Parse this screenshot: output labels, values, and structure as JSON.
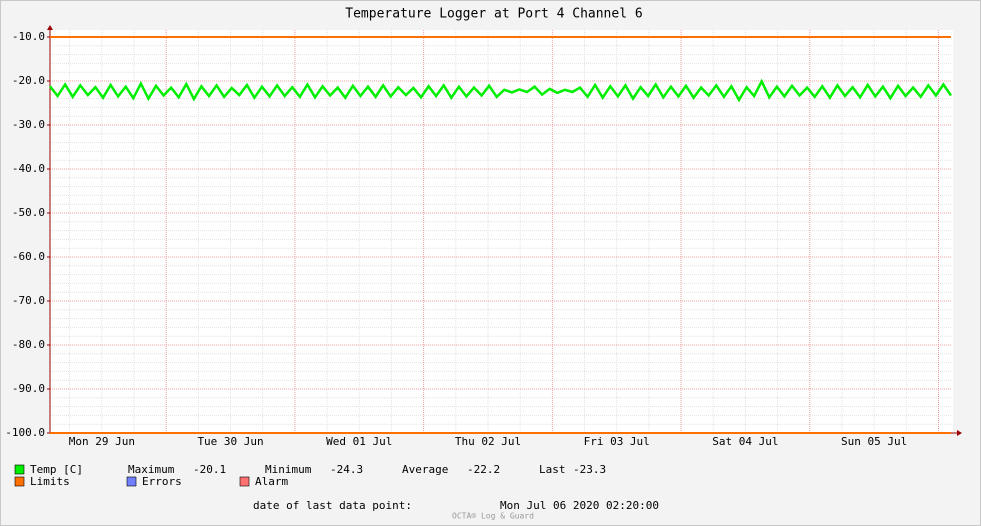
{
  "chart_data": {
    "type": "line",
    "title": "Temperature Logger at Port 4 Channel 6",
    "xlim": [
      "2020-06-29T02:20",
      "2020-07-06T02:20"
    ],
    "xticks": [
      {
        "value": "2020-06-29T12:00",
        "label": "Mon 29 Jun"
      },
      {
        "value": "2020-06-30T12:00",
        "label": "Tue 30 Jun"
      },
      {
        "value": "2020-07-01T12:00",
        "label": "Wed 01 Jul"
      },
      {
        "value": "2020-07-02T12:00",
        "label": "Thu 02 Jul"
      },
      {
        "value": "2020-07-03T12:00",
        "label": "Fri 03 Jul"
      },
      {
        "value": "2020-07-04T12:00",
        "label": "Sat 04 Jul"
      },
      {
        "value": "2020-07-05T12:00",
        "label": "Sun 05 Jul"
      }
    ],
    "xgrid": [
      "2020-06-30T00:00",
      "2020-07-01T00:00",
      "2020-07-02T00:00",
      "2020-07-03T00:00",
      "2020-07-04T00:00",
      "2020-07-05T00:00",
      "2020-07-06T00:00"
    ],
    "xminorgrid": [
      "2020-06-29T06:00",
      "2020-06-29T12:00",
      "2020-06-29T18:00",
      "2020-06-30T06:00",
      "2020-06-30T12:00",
      "2020-06-30T18:00",
      "2020-07-01T06:00",
      "2020-07-01T12:00",
      "2020-07-01T18:00",
      "2020-07-02T06:00",
      "2020-07-02T12:00",
      "2020-07-02T18:00",
      "2020-07-03T06:00",
      "2020-07-03T12:00",
      "2020-07-03T18:00",
      "2020-07-04T06:00",
      "2020-07-04T12:00",
      "2020-07-04T18:00",
      "2020-07-05T06:00",
      "2020-07-05T12:00",
      "2020-07-05T18:00"
    ],
    "ylim": [
      -100,
      -10
    ],
    "yticks": [
      {
        "value": -10,
        "label": "-10.0"
      },
      {
        "value": -20,
        "label": "-20.0"
      },
      {
        "value": -30,
        "label": "-30.0"
      },
      {
        "value": -40,
        "label": "-40.0"
      },
      {
        "value": -50,
        "label": "-50.0"
      },
      {
        "value": -60,
        "label": "-60.0"
      },
      {
        "value": -70,
        "label": "-70.0"
      },
      {
        "value": -80,
        "label": "-80.0"
      },
      {
        "value": -90,
        "label": "-90.0"
      },
      {
        "value": -100,
        "label": "-100.0"
      }
    ],
    "yminorgrid": [
      -12,
      -14,
      -16,
      -18,
      -22,
      -24,
      -26,
      -28,
      -32,
      -34,
      -36,
      -38,
      -42,
      -44,
      -46,
      -48,
      -52,
      -54,
      -56,
      -58,
      -62,
      -64,
      -66,
      -68,
      -72,
      -74,
      -76,
      -78,
      -82,
      -84,
      -86,
      -88,
      -92,
      -94,
      -96,
      -98
    ],
    "grid": true,
    "series": [
      {
        "name": "Temp [C]",
        "color": "#00ee00",
        "values": [
          -21.2,
          -23.4,
          -20.8,
          -23.6,
          -21.0,
          -23.2,
          -21.4,
          -23.8,
          -20.9,
          -23.5,
          -21.3,
          -23.9,
          -20.6,
          -24.0,
          -21.1,
          -23.3,
          -21.5,
          -23.7,
          -20.7,
          -24.1,
          -21.2,
          -23.4,
          -21.0,
          -23.6,
          -21.6,
          -23.2,
          -20.9,
          -23.8,
          -21.3,
          -23.5,
          -21.0,
          -23.4,
          -21.4,
          -23.6,
          -20.8,
          -23.7,
          -21.2,
          -23.3,
          -21.5,
          -23.8,
          -21.1,
          -23.4,
          -21.3,
          -23.6,
          -21.0,
          -23.5,
          -21.4,
          -23.2,
          -21.6,
          -23.7,
          -21.2,
          -23.4,
          -21.0,
          -23.8,
          -21.3,
          -23.5,
          -21.5,
          -23.3,
          -21.1,
          -23.6,
          -22.0,
          -22.6,
          -21.9,
          -22.5,
          -21.3,
          -23.1,
          -21.8,
          -22.7,
          -22.0,
          -22.5,
          -21.5,
          -23.6,
          -20.9,
          -23.8,
          -21.2,
          -23.5,
          -21.0,
          -24.0,
          -21.4,
          -23.4,
          -20.8,
          -23.7,
          -21.3,
          -23.5,
          -21.1,
          -23.8,
          -21.5,
          -23.3,
          -21.0,
          -23.6,
          -21.2,
          -24.3,
          -21.4,
          -23.4,
          -20.1,
          -23.7,
          -21.3,
          -23.5,
          -21.1,
          -23.3,
          -21.5,
          -23.6,
          -21.2,
          -23.8,
          -21.0,
          -23.4,
          -21.4,
          -23.7,
          -20.9,
          -23.5,
          -21.3,
          -23.9,
          -21.1,
          -23.4,
          -21.5,
          -23.6,
          -21.0,
          -23.3,
          -20.8,
          -23.3
        ]
      }
    ],
    "limits": {
      "name": "Limits",
      "color": "#ff7000",
      "values": [
        -10,
        -100
      ]
    },
    "legend_extra": [
      {
        "name": "Errors",
        "color": "#7080ff"
      },
      {
        "name": "Alarm",
        "color": "#ff7070"
      }
    ],
    "stats": [
      {
        "label": "Maximum",
        "value": -20.1
      },
      {
        "label": "Minimum",
        "value": -24.3
      },
      {
        "label": "Average",
        "value": -22.2
      },
      {
        "label": "Last",
        "value": -23.3
      }
    ],
    "footer": {
      "label": "date of last data point:",
      "value": "Mon Jul 06 2020 02:20:00"
    },
    "watermark": "OCTA® Log & Guard"
  }
}
